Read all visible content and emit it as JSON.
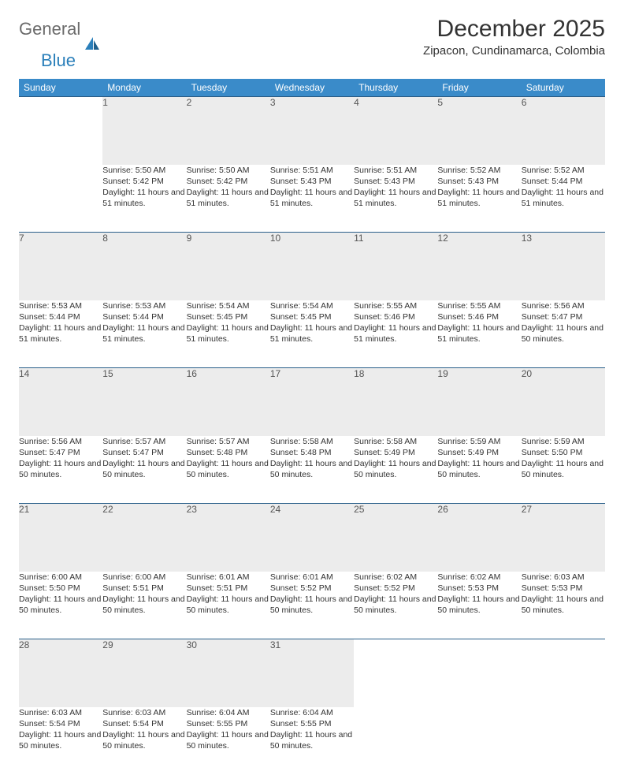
{
  "brand": {
    "word1": "General",
    "word2": "Blue"
  },
  "title": "December 2025",
  "location": "Zipacon, Cundinamarca, Colombia",
  "colors": {
    "header_bg": "#3a8bc9",
    "header_text": "#ffffff",
    "daynum_bg": "#ececec",
    "rule": "#2a5f8a",
    "text": "#333333",
    "brand_gray": "#6b6b6b",
    "brand_blue": "#2a7fba"
  },
  "weekdays": [
    "Sunday",
    "Monday",
    "Tuesday",
    "Wednesday",
    "Thursday",
    "Friday",
    "Saturday"
  ],
  "first_weekday_index": 1,
  "days": [
    {
      "n": 1,
      "sunrise": "5:50 AM",
      "sunset": "5:42 PM",
      "daylight": "11 hours and 51 minutes."
    },
    {
      "n": 2,
      "sunrise": "5:50 AM",
      "sunset": "5:42 PM",
      "daylight": "11 hours and 51 minutes."
    },
    {
      "n": 3,
      "sunrise": "5:51 AM",
      "sunset": "5:43 PM",
      "daylight": "11 hours and 51 minutes."
    },
    {
      "n": 4,
      "sunrise": "5:51 AM",
      "sunset": "5:43 PM",
      "daylight": "11 hours and 51 minutes."
    },
    {
      "n": 5,
      "sunrise": "5:52 AM",
      "sunset": "5:43 PM",
      "daylight": "11 hours and 51 minutes."
    },
    {
      "n": 6,
      "sunrise": "5:52 AM",
      "sunset": "5:44 PM",
      "daylight": "11 hours and 51 minutes."
    },
    {
      "n": 7,
      "sunrise": "5:53 AM",
      "sunset": "5:44 PM",
      "daylight": "11 hours and 51 minutes."
    },
    {
      "n": 8,
      "sunrise": "5:53 AM",
      "sunset": "5:44 PM",
      "daylight": "11 hours and 51 minutes."
    },
    {
      "n": 9,
      "sunrise": "5:54 AM",
      "sunset": "5:45 PM",
      "daylight": "11 hours and 51 minutes."
    },
    {
      "n": 10,
      "sunrise": "5:54 AM",
      "sunset": "5:45 PM",
      "daylight": "11 hours and 51 minutes."
    },
    {
      "n": 11,
      "sunrise": "5:55 AM",
      "sunset": "5:46 PM",
      "daylight": "11 hours and 51 minutes."
    },
    {
      "n": 12,
      "sunrise": "5:55 AM",
      "sunset": "5:46 PM",
      "daylight": "11 hours and 51 minutes."
    },
    {
      "n": 13,
      "sunrise": "5:56 AM",
      "sunset": "5:47 PM",
      "daylight": "11 hours and 50 minutes."
    },
    {
      "n": 14,
      "sunrise": "5:56 AM",
      "sunset": "5:47 PM",
      "daylight": "11 hours and 50 minutes."
    },
    {
      "n": 15,
      "sunrise": "5:57 AM",
      "sunset": "5:47 PM",
      "daylight": "11 hours and 50 minutes."
    },
    {
      "n": 16,
      "sunrise": "5:57 AM",
      "sunset": "5:48 PM",
      "daylight": "11 hours and 50 minutes."
    },
    {
      "n": 17,
      "sunrise": "5:58 AM",
      "sunset": "5:48 PM",
      "daylight": "11 hours and 50 minutes."
    },
    {
      "n": 18,
      "sunrise": "5:58 AM",
      "sunset": "5:49 PM",
      "daylight": "11 hours and 50 minutes."
    },
    {
      "n": 19,
      "sunrise": "5:59 AM",
      "sunset": "5:49 PM",
      "daylight": "11 hours and 50 minutes."
    },
    {
      "n": 20,
      "sunrise": "5:59 AM",
      "sunset": "5:50 PM",
      "daylight": "11 hours and 50 minutes."
    },
    {
      "n": 21,
      "sunrise": "6:00 AM",
      "sunset": "5:50 PM",
      "daylight": "11 hours and 50 minutes."
    },
    {
      "n": 22,
      "sunrise": "6:00 AM",
      "sunset": "5:51 PM",
      "daylight": "11 hours and 50 minutes."
    },
    {
      "n": 23,
      "sunrise": "6:01 AM",
      "sunset": "5:51 PM",
      "daylight": "11 hours and 50 minutes."
    },
    {
      "n": 24,
      "sunrise": "6:01 AM",
      "sunset": "5:52 PM",
      "daylight": "11 hours and 50 minutes."
    },
    {
      "n": 25,
      "sunrise": "6:02 AM",
      "sunset": "5:52 PM",
      "daylight": "11 hours and 50 minutes."
    },
    {
      "n": 26,
      "sunrise": "6:02 AM",
      "sunset": "5:53 PM",
      "daylight": "11 hours and 50 minutes."
    },
    {
      "n": 27,
      "sunrise": "6:03 AM",
      "sunset": "5:53 PM",
      "daylight": "11 hours and 50 minutes."
    },
    {
      "n": 28,
      "sunrise": "6:03 AM",
      "sunset": "5:54 PM",
      "daylight": "11 hours and 50 minutes."
    },
    {
      "n": 29,
      "sunrise": "6:03 AM",
      "sunset": "5:54 PM",
      "daylight": "11 hours and 50 minutes."
    },
    {
      "n": 30,
      "sunrise": "6:04 AM",
      "sunset": "5:55 PM",
      "daylight": "11 hours and 50 minutes."
    },
    {
      "n": 31,
      "sunrise": "6:04 AM",
      "sunset": "5:55 PM",
      "daylight": "11 hours and 50 minutes."
    }
  ],
  "labels": {
    "sunrise": "Sunrise: ",
    "sunset": "Sunset: ",
    "daylight": "Daylight: "
  }
}
